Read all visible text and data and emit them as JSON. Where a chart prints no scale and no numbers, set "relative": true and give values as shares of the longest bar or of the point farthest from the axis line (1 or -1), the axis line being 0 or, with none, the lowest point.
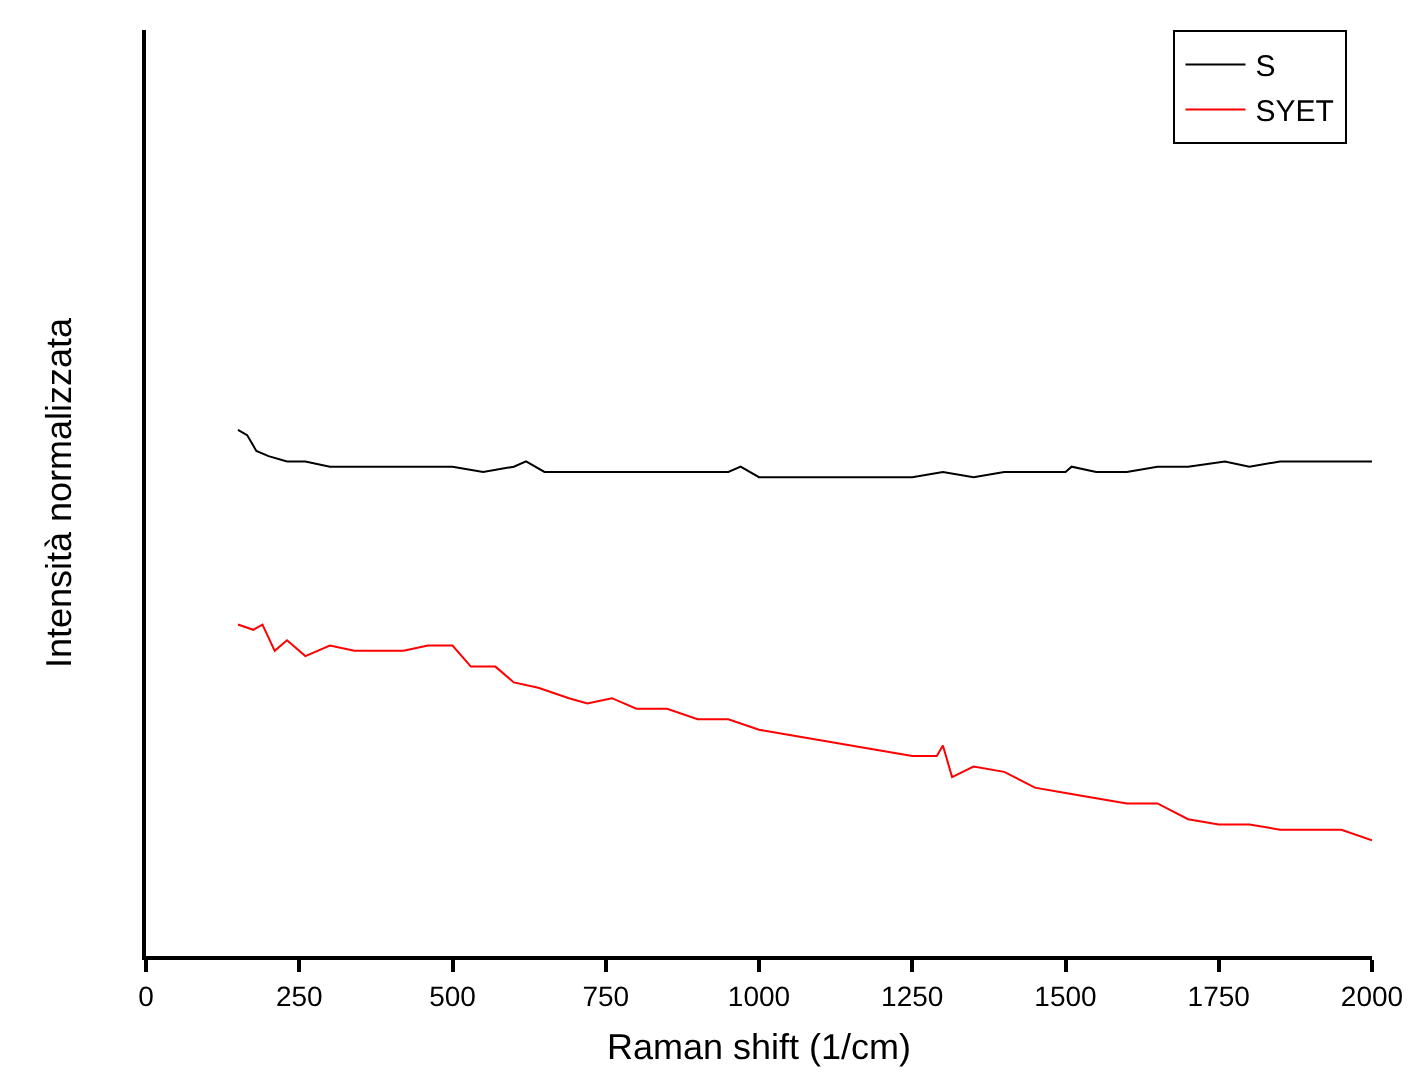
{
  "chart_data": {
    "type": "line",
    "xlabel": "Raman shift (1/cm)",
    "ylabel": "Intensità normalizzata",
    "relative": true,
    "xlim": [
      0,
      2000
    ],
    "xticks": [
      0,
      250,
      500,
      750,
      1000,
      1250,
      1500,
      1750,
      2000
    ],
    "grid": false,
    "legend": "top right",
    "marker": "none",
    "line_style": "solid",
    "series": [
      {
        "name": "S",
        "color": "#000000",
        "x": [
          150,
          165,
          180,
          200,
          230,
          260,
          300,
          350,
          400,
          450,
          500,
          550,
          600,
          620,
          650,
          700,
          750,
          800,
          850,
          900,
          950,
          970,
          1000,
          1050,
          1100,
          1150,
          1200,
          1250,
          1300,
          1350,
          1400,
          1450,
          1500,
          1510,
          1550,
          1600,
          1650,
          1700,
          1760,
          1800,
          1850,
          1900,
          1950,
          2000
        ],
        "values": [
          1.0,
          0.99,
          0.96,
          0.95,
          0.94,
          0.94,
          0.93,
          0.93,
          0.93,
          0.93,
          0.93,
          0.92,
          0.93,
          0.94,
          0.92,
          0.92,
          0.92,
          0.92,
          0.92,
          0.92,
          0.92,
          0.93,
          0.91,
          0.91,
          0.91,
          0.91,
          0.91,
          0.91,
          0.92,
          0.91,
          0.92,
          0.92,
          0.92,
          0.93,
          0.92,
          0.92,
          0.93,
          0.93,
          0.94,
          0.93,
          0.94,
          0.94,
          0.94,
          0.94
        ]
      },
      {
        "name": "SYET",
        "color": "#ff0000",
        "x": [
          150,
          175,
          190,
          210,
          230,
          260,
          300,
          340,
          380,
          420,
          460,
          500,
          530,
          570,
          600,
          640,
          690,
          720,
          760,
          800,
          850,
          900,
          950,
          1000,
          1050,
          1100,
          1150,
          1200,
          1250,
          1290,
          1300,
          1315,
          1350,
          1400,
          1450,
          1500,
          1550,
          1600,
          1650,
          1700,
          1750,
          1800,
          1850,
          1900,
          1950,
          2000
        ],
        "values": [
          0.63,
          0.62,
          0.63,
          0.58,
          0.6,
          0.57,
          0.59,
          0.58,
          0.58,
          0.58,
          0.59,
          0.59,
          0.55,
          0.55,
          0.52,
          0.51,
          0.49,
          0.48,
          0.49,
          0.47,
          0.47,
          0.45,
          0.45,
          0.43,
          0.42,
          0.41,
          0.4,
          0.39,
          0.38,
          0.38,
          0.4,
          0.34,
          0.36,
          0.35,
          0.32,
          0.31,
          0.3,
          0.29,
          0.29,
          0.26,
          0.25,
          0.25,
          0.24,
          0.24,
          0.24,
          0.22
        ]
      }
    ]
  }
}
